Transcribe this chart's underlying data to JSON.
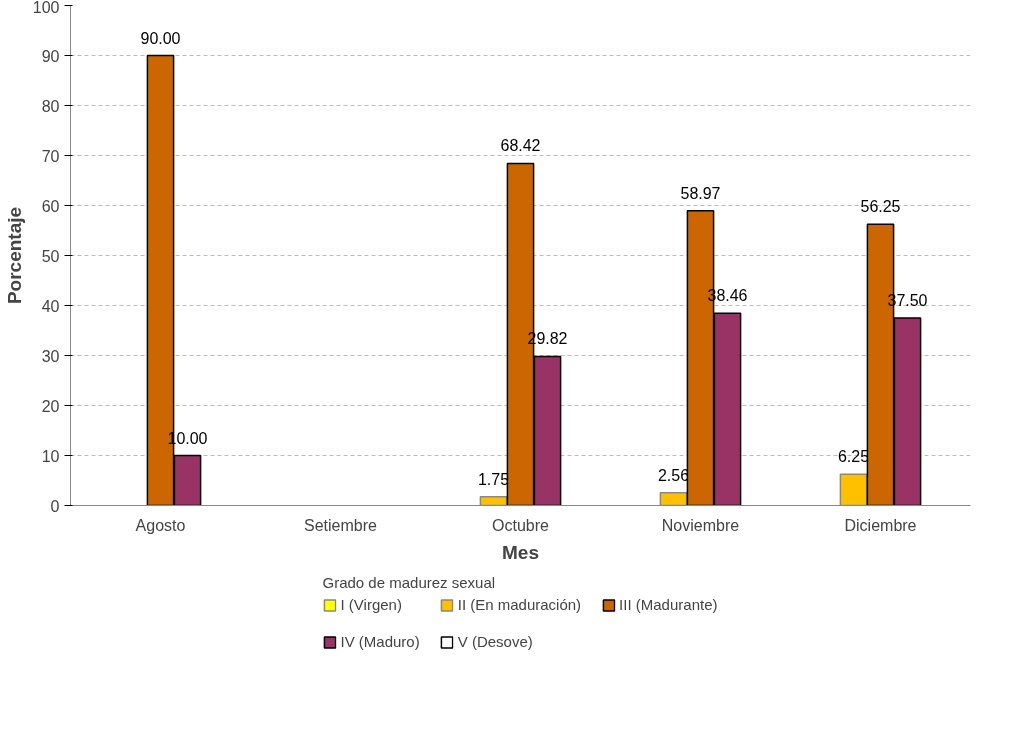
{
  "chart_data": {
    "type": "bar",
    "xlabel": "Mes",
    "ylabel": "Porcentaje",
    "legend_title": "Grado de madurez sexual",
    "categories": [
      "Agosto",
      "Setiembre",
      "Octubre",
      "Noviembre",
      "Diciembre"
    ],
    "series": [
      {
        "name": "I (Virgen)",
        "color": "#ffff00",
        "values": [
          null,
          null,
          null,
          null,
          null
        ]
      },
      {
        "name": "II (En maduración)",
        "color": "#ffc000",
        "values": [
          null,
          null,
          1.75,
          2.56,
          6.25
        ],
        "value_labels": [
          null,
          null,
          "1.75",
          "2.56",
          "6.25"
        ]
      },
      {
        "name": "III (Madurante)",
        "color": "#cc6600",
        "values": [
          90.0,
          null,
          68.42,
          58.97,
          56.25
        ],
        "value_labels": [
          "90.00",
          null,
          "68.42",
          "58.97",
          "56.25"
        ]
      },
      {
        "name": "IV (Maduro)",
        "color": "#993366",
        "values": [
          10.0,
          null,
          29.82,
          38.46,
          37.5
        ],
        "value_labels": [
          "10.00",
          null,
          "29.82",
          "38.46",
          "37.50"
        ]
      },
      {
        "name": "V (Desove)",
        "color": "#ffffff",
        "values": [
          null,
          null,
          null,
          null,
          null
        ]
      }
    ],
    "ylim": [
      0,
      100
    ],
    "yticks": [
      0,
      10,
      20,
      30,
      40,
      50,
      60,
      70,
      80,
      90,
      100
    ],
    "grid": "y",
    "legend": "bottom"
  }
}
